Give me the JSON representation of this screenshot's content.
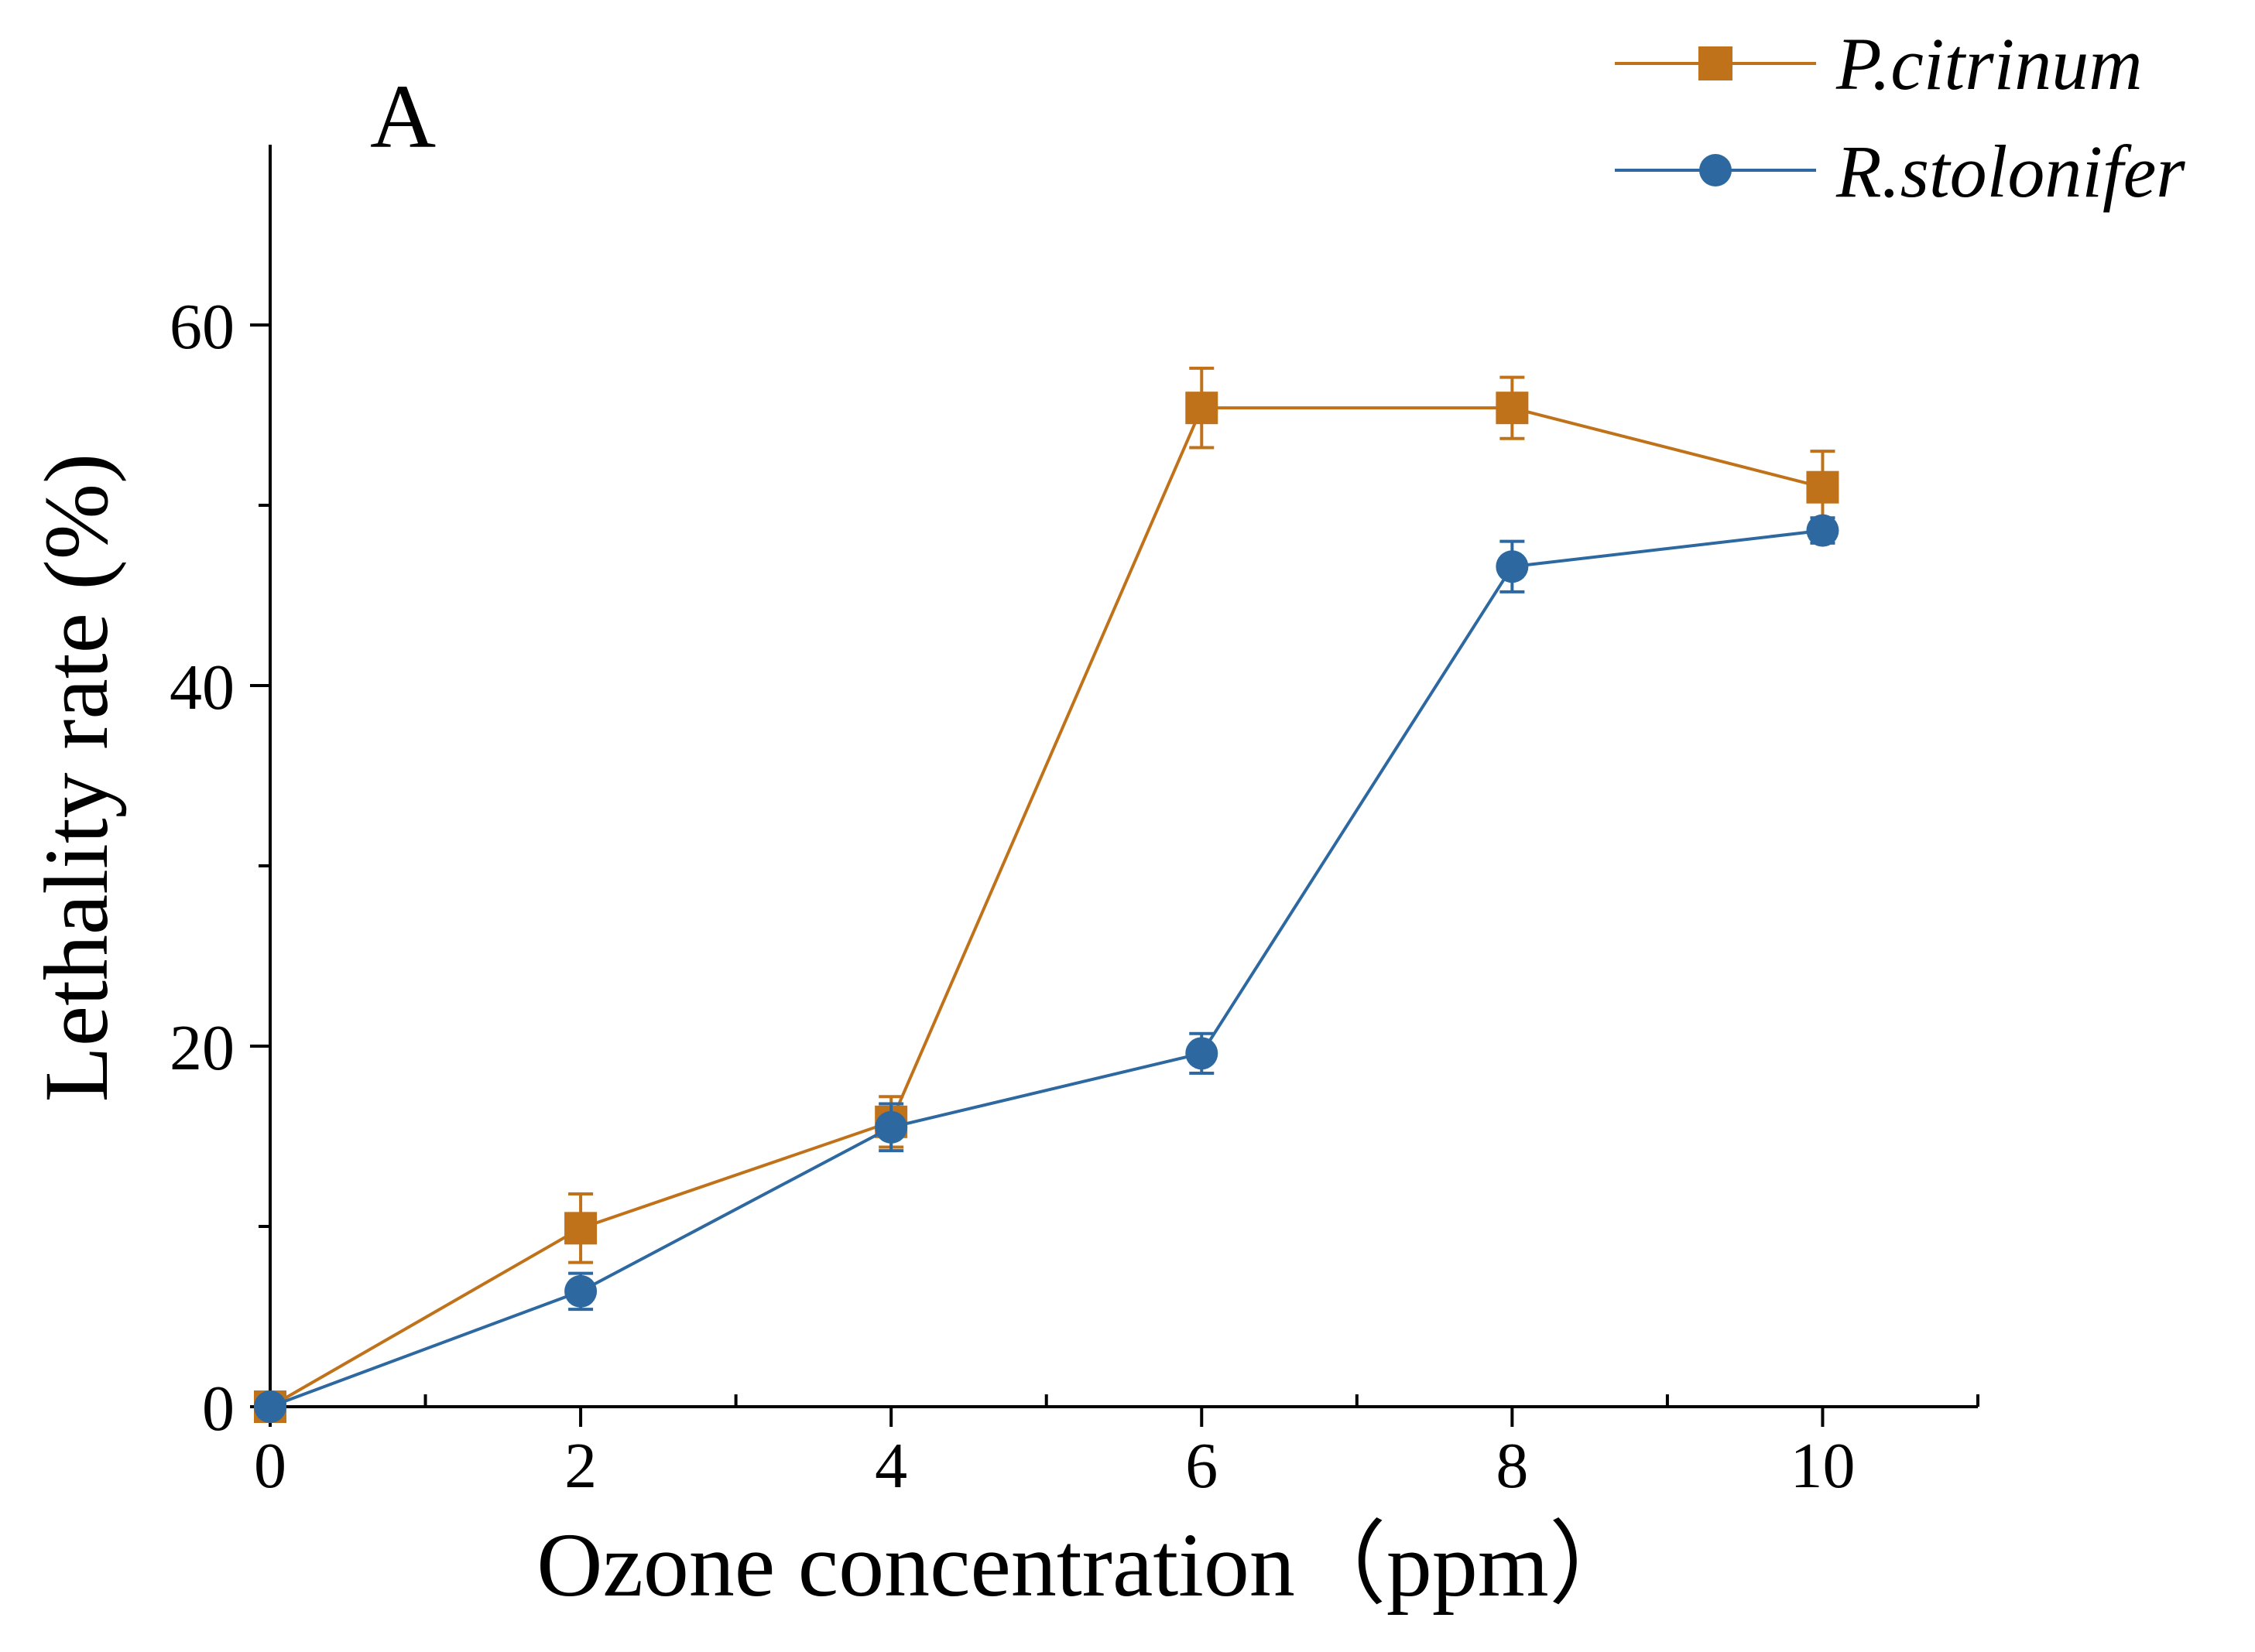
{
  "colors": {
    "series1": "#C0721A",
    "series2": "#2D68A0"
  },
  "chart_data": {
    "type": "line",
    "panel_label": "A",
    "xlabel": "Ozone concentration（ppm）",
    "ylabel": "Lethality rate (%)",
    "xlim": [
      0,
      11
    ],
    "ylim": [
      0,
      70
    ],
    "x_ticks": [
      0,
      2,
      4,
      6,
      8,
      10
    ],
    "x_minor_ticks": [
      1,
      3,
      5,
      7,
      9,
      11
    ],
    "y_ticks": [
      0,
      20,
      40,
      60
    ],
    "y_minor_ticks": [
      10,
      30,
      50
    ],
    "legend_position": "top-right",
    "x": [
      0,
      2,
      4,
      6,
      8,
      10
    ],
    "series": [
      {
        "name": "P.citrinum",
        "marker": "square",
        "color": "#C0721A",
        "values": [
          0,
          9.9,
          15.8,
          55.4,
          55.4,
          51.0
        ],
        "errors": [
          0,
          1.9,
          1.4,
          2.2,
          1.7,
          2.0
        ]
      },
      {
        "name": "R.stolonifer",
        "marker": "circle",
        "color": "#2D68A0",
        "values": [
          0,
          6.4,
          15.5,
          19.6,
          46.6,
          48.6
        ],
        "errors": [
          0,
          1.0,
          1.3,
          1.1,
          1.4,
          0.7
        ]
      }
    ]
  }
}
